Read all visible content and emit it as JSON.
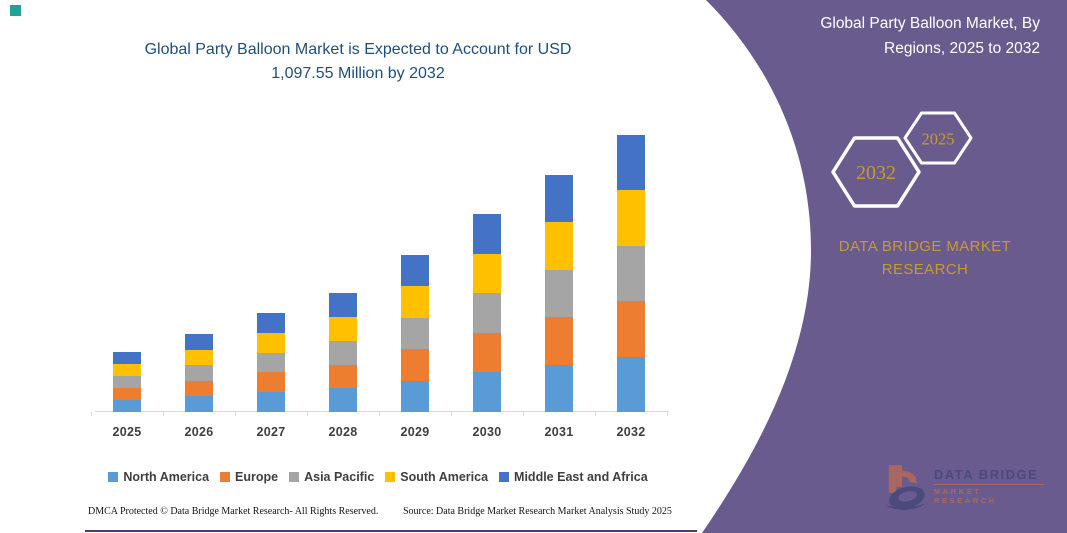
{
  "left": {
    "title_lines": [
      "Global Party Balloon Market is Expected to Account for USD",
      "1,097.55 Million by 2032"
    ],
    "footer_dmca": "DMCA Protected © Data Bridge Market Research-  All Rights Reserved.",
    "footer_source": "Source: Data Bridge Market Research  Market Analysis Study 2025"
  },
  "right_panel": {
    "title_lines": [
      "Global Party Balloon Market, By",
      "Regions, 2025 to 2032"
    ],
    "hexagon_back_label": "2032",
    "hexagon_front_label": "2025",
    "brand_lines": [
      "DATA BRIDGE MARKET",
      "RESEARCH"
    ],
    "logo": {
      "name_top": "DATA BRIDGE",
      "name_bottom": "MARKET RESEARCH"
    }
  },
  "colors": {
    "panel_purple": "#6A5B8E",
    "title_navy": "#1F4E79",
    "gold": "#C59A2F",
    "axis_line": "#D9D9D9",
    "axis_label_text": "#3F3F3F",
    "hexagon_border": "#FFFFFF",
    "panel_title_text": "#FFFFFF",
    "logo_navy": "#2B3A6B",
    "logo_orange": "#E87435",
    "corner_square_teal": "#1FA297",
    "bottom_line_purple": "#4B3B70"
  },
  "chart_data": {
    "type": "bar",
    "stacked": true,
    "title": "Global Party Balloon Market is Expected to Account for USD 1,097.55 Million by 2032",
    "unit": "USD Million",
    "categories": [
      "2025",
      "2026",
      "2027",
      "2028",
      "2029",
      "2030",
      "2031",
      "2032"
    ],
    "series": [
      {
        "name": "North America",
        "color": "#5B9BD5",
        "values": [
          47.2,
          61.6,
          78.4,
          94.0,
          124.8,
          156.6,
          187.8,
          219.5
        ]
      },
      {
        "name": "Europe",
        "color": "#ED7D31",
        "values": [
          47.2,
          61.6,
          78.4,
          94.0,
          124.8,
          156.6,
          187.8,
          219.5
        ]
      },
      {
        "name": "Asia Pacific",
        "color": "#A5A5A5",
        "values": [
          47.2,
          61.6,
          78.4,
          94.0,
          124.8,
          156.6,
          187.8,
          219.5
        ]
      },
      {
        "name": "South America",
        "color": "#FFC000",
        "values": [
          47.2,
          61.6,
          78.4,
          94.0,
          124.8,
          156.6,
          187.8,
          219.5
        ]
      },
      {
        "name": "Middle East and Africa",
        "color": "#4472C4",
        "values": [
          47.2,
          61.6,
          78.4,
          94.0,
          124.8,
          156.6,
          187.8,
          219.55
        ]
      }
    ],
    "totals": [
      236,
      308,
      392,
      470,
      624,
      783,
      939,
      1097.55
    ],
    "ylim": [
      0,
      1100
    ],
    "grid": false,
    "y_axis_shown": false,
    "x_axis_labels_shown": true,
    "legend_position": "bottom"
  }
}
